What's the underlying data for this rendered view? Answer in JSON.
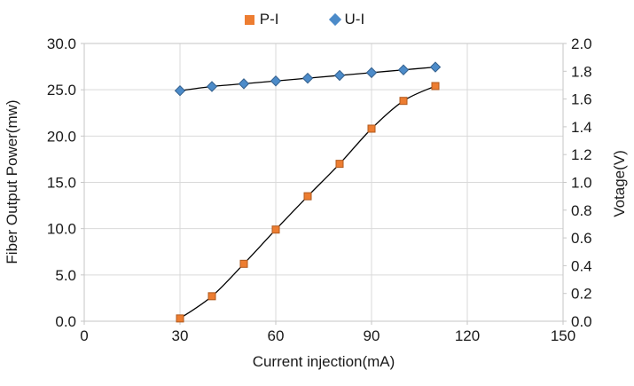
{
  "chart_data": {
    "type": "line",
    "x": [
      30,
      40,
      50,
      60,
      70,
      80,
      90,
      100,
      110
    ],
    "series": [
      {
        "name": "P-I",
        "axis": "left",
        "marker": "square",
        "marker_color": "#ED7D31",
        "marker_border": "#B15A1E",
        "values": [
          0.3,
          2.7,
          6.2,
          9.9,
          13.5,
          17.0,
          20.8,
          23.8,
          25.4
        ]
      },
      {
        "name": "U-I",
        "axis": "right",
        "marker": "diamond",
        "marker_color": "#4C8BC9",
        "marker_border": "#35618E",
        "values": [
          1.66,
          1.69,
          1.71,
          1.73,
          1.75,
          1.77,
          1.79,
          1.81,
          1.83
        ]
      }
    ],
    "line_color": "#000000",
    "smooth": true,
    "grid": true,
    "legend_position": "top",
    "x_axis": {
      "label": "Current injection(mA)",
      "range": [
        0,
        150
      ],
      "ticks": [
        0,
        30,
        60,
        90,
        120,
        150
      ],
      "tick_labels": [
        "0",
        "30",
        "60",
        "90",
        "120",
        "150"
      ]
    },
    "y_left": {
      "label": "Fiber Output Power(mw)",
      "range": [
        0,
        30
      ],
      "ticks": [
        0,
        5,
        10,
        15,
        20,
        25,
        30
      ],
      "tick_labels": [
        "0.0",
        "5.0",
        "10.0",
        "15.0",
        "20.0",
        "25.0",
        "30.0"
      ]
    },
    "y_right": {
      "label": "Votage(V)",
      "range": [
        0,
        2
      ],
      "ticks": [
        0,
        0.2,
        0.4,
        0.6,
        0.8,
        1.0,
        1.2,
        1.4,
        1.6,
        1.8,
        2.0
      ],
      "tick_labels": [
        "0.0",
        "0.2",
        "0.4",
        "0.6",
        "0.8",
        "1.0",
        "1.2",
        "1.4",
        "1.6",
        "1.8",
        "2.0"
      ]
    },
    "colors": {
      "grid": "#D9D9D9",
      "axis": "#C6C6C6",
      "text": "#1A1A1A",
      "background": "#FFFFFF"
    }
  }
}
